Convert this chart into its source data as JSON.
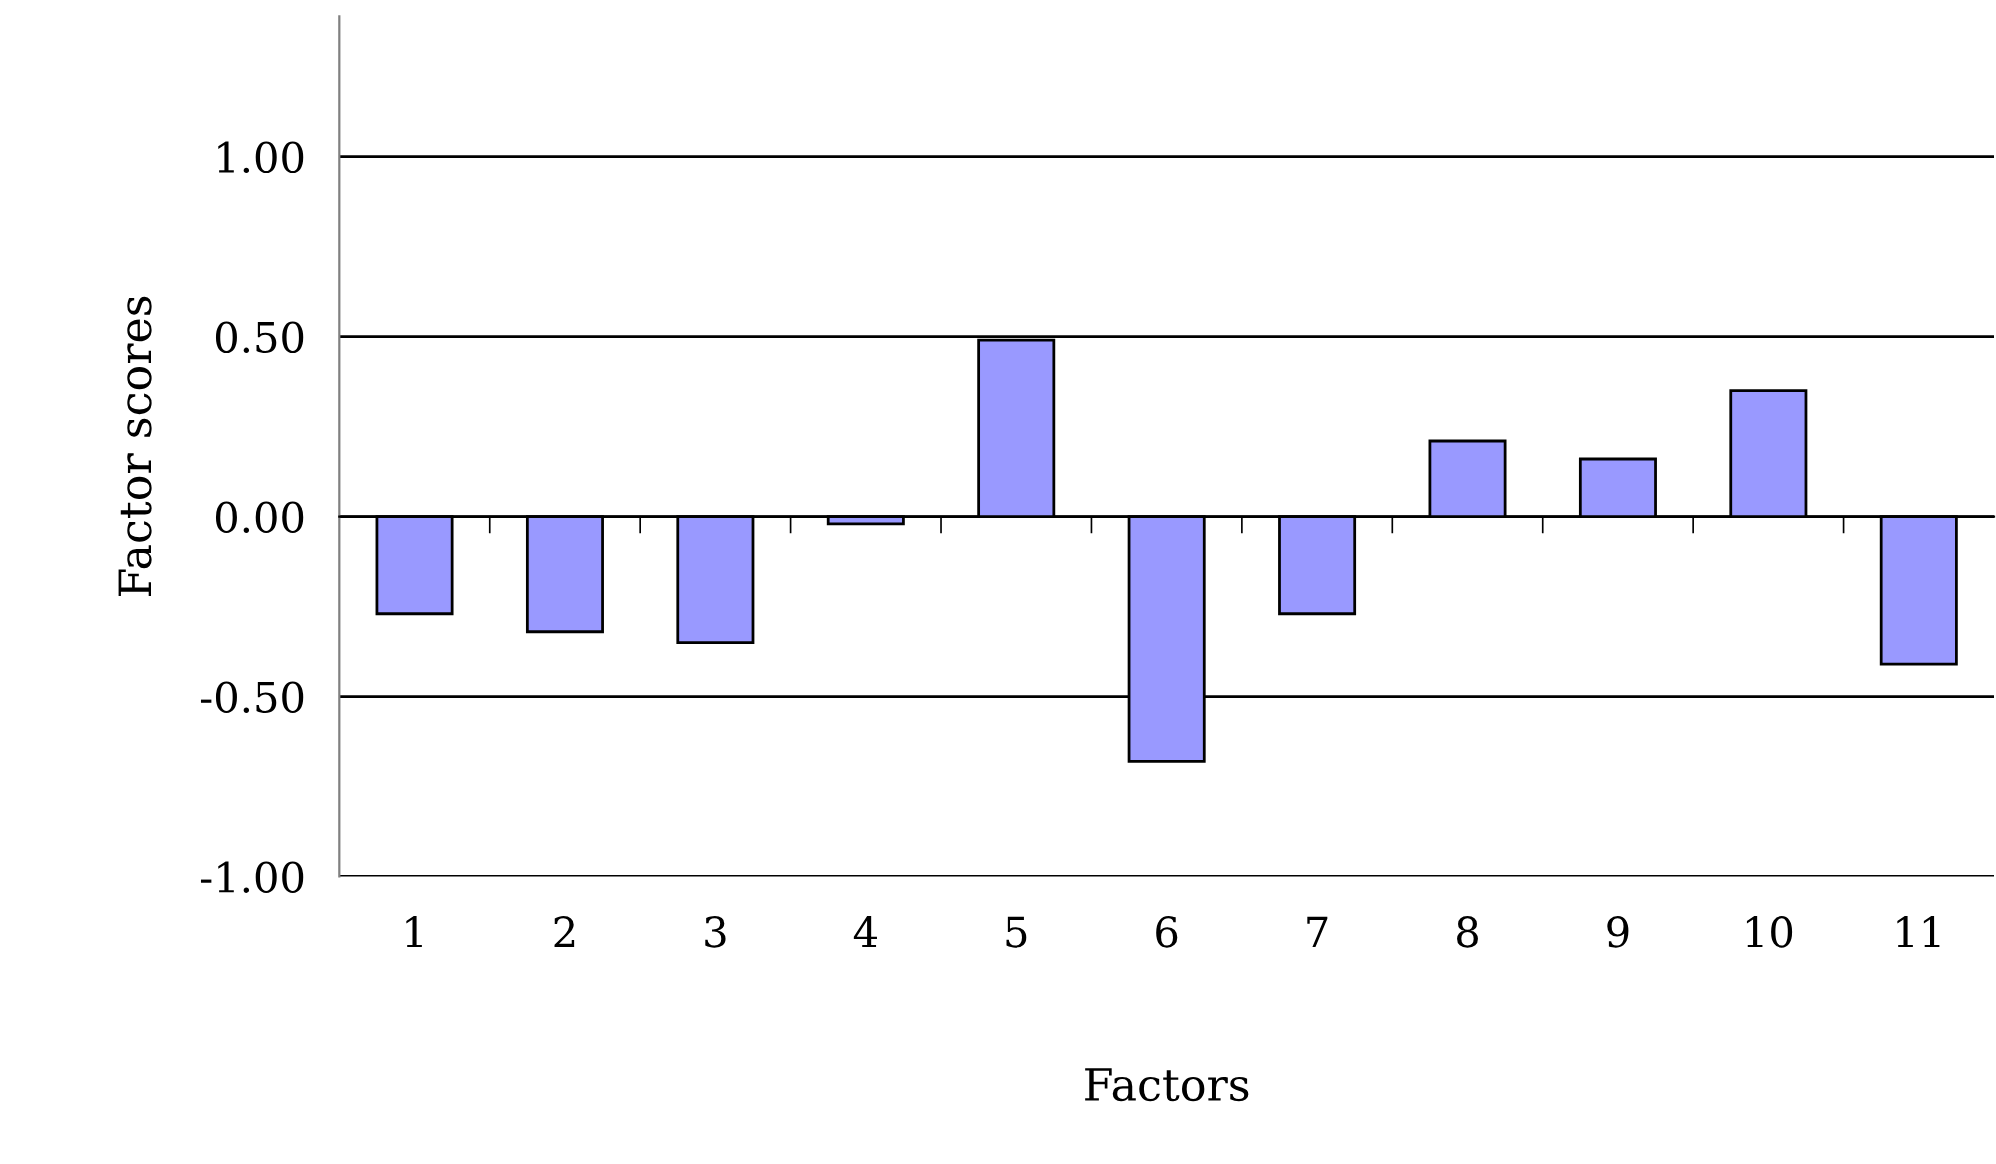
{
  "chart_data": {
    "type": "bar",
    "xlabel": "Factors",
    "ylabel": "Factor scores",
    "categories": [
      "1",
      "2",
      "3",
      "4",
      "5",
      "6",
      "7",
      "8",
      "9",
      "10",
      "11"
    ],
    "values": [
      -0.27,
      -0.32,
      -0.35,
      -0.02,
      0.49,
      -0.68,
      -0.27,
      0.21,
      0.16,
      0.35,
      -0.41
    ],
    "color": "#9999ff",
    "ylim": [
      -1.0,
      1.39
    ],
    "yticks": [
      {
        "value": -1.0,
        "label": "-1.00"
      },
      {
        "value": -0.5,
        "label": "-0.50"
      },
      {
        "value": 0.0,
        "label": "0.00"
      },
      {
        "value": 0.5,
        "label": "0.50"
      },
      {
        "value": 1.0,
        "label": "1.00"
      }
    ],
    "grid": "y",
    "legend": false
  }
}
